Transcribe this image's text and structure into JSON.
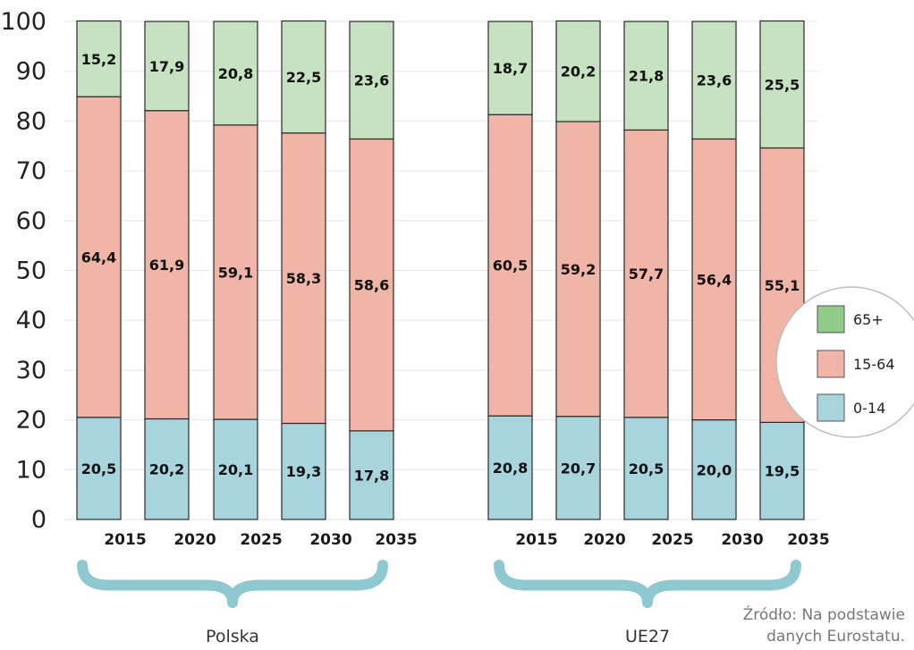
{
  "chart_data": {
    "type": "bar",
    "stacked": true,
    "ylim": [
      0,
      100
    ],
    "yticks": [
      "0",
      "10",
      "20",
      "30",
      "40",
      "50",
      "60",
      "70",
      "80",
      "90",
      "100"
    ],
    "groups": [
      {
        "name": "Polska",
        "categories": [
          "2015",
          "2020",
          "2025",
          "2030",
          "2035"
        ],
        "series": [
          {
            "name": "0-14",
            "values": [
              20.5,
              20.2,
              20.1,
              19.3,
              17.8
            ],
            "labels": [
              "20,5",
              "20,2",
              "20,1",
              "19,3",
              "17,8"
            ]
          },
          {
            "name": "15-64",
            "values": [
              64.4,
              61.9,
              59.1,
              58.3,
              58.6
            ],
            "labels": [
              "64,4",
              "61,9",
              "59,1",
              "58,3",
              "58,6"
            ]
          },
          {
            "name": "65+",
            "values": [
              15.2,
              17.9,
              20.8,
              22.5,
              23.6
            ],
            "labels": [
              "15,2",
              "17,9",
              "20,8",
              "22,5",
              "23,6"
            ]
          }
        ]
      },
      {
        "name": "UE27",
        "categories": [
          "2015",
          "2020",
          "2025",
          "2030",
          "2035"
        ],
        "series": [
          {
            "name": "0-14",
            "values": [
              20.8,
              20.7,
              20.5,
              20.0,
              19.5
            ],
            "labels": [
              "20,8",
              "20,7",
              "20,5",
              "20,0",
              "19,5"
            ]
          },
          {
            "name": "15-64",
            "values": [
              60.5,
              59.2,
              57.7,
              56.4,
              55.1
            ],
            "labels": [
              "60,5",
              "59,2",
              "57,7",
              "56,4",
              "55,1"
            ]
          },
          {
            "name": "65+",
            "values": [
              18.7,
              20.2,
              21.8,
              23.6,
              25.5
            ],
            "labels": [
              "18,7",
              "20,2",
              "21,8",
              "23,6",
              "25,5"
            ]
          }
        ]
      }
    ],
    "legend": {
      "placement": "right",
      "items": [
        {
          "name": "65+",
          "color": "#8fcc8a"
        },
        {
          "name": "15-64",
          "color": "#f0b5a6"
        },
        {
          "name": "0-14",
          "color": "#a8d5dd"
        }
      ]
    },
    "colors": {
      "0-14": "#a8d5dd",
      "15-64": "#f0b5a6",
      "65+": "#c6e2c1",
      "brace": "#8ec9d2"
    },
    "grid": true
  },
  "source": {
    "line1": "Źródło: Na podstawie",
    "line2": "danych Eurostatu."
  }
}
